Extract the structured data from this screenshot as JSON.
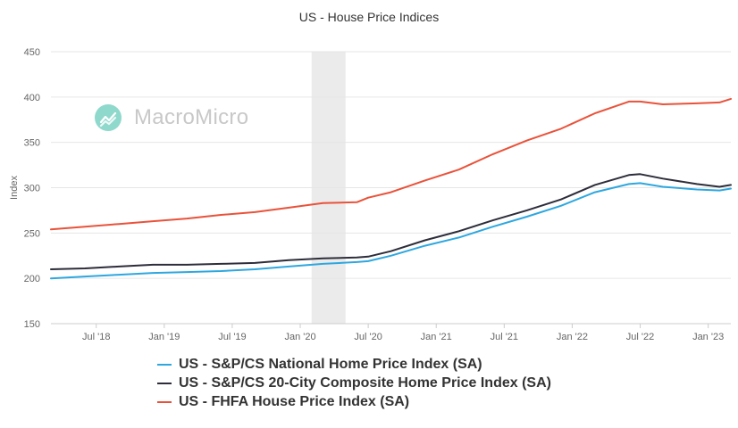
{
  "chart_data": {
    "type": "line",
    "title": "US - House Price Indices",
    "ylabel": "Index",
    "xlabel": "",
    "ylim": [
      150,
      450
    ],
    "yticks": [
      150,
      200,
      250,
      300,
      350,
      400,
      450
    ],
    "xlim": [
      "2018-03",
      "2023-03"
    ],
    "xticks": [
      {
        "label": "Jul '18",
        "date": "2018-07"
      },
      {
        "label": "Jan '19",
        "date": "2019-01"
      },
      {
        "label": "Jul '19",
        "date": "2019-07"
      },
      {
        "label": "Jan '20",
        "date": "2020-01"
      },
      {
        "label": "Jul '20",
        "date": "2020-07"
      },
      {
        "label": "Jan '21",
        "date": "2021-01"
      },
      {
        "label": "Jul '21",
        "date": "2021-07"
      },
      {
        "label": "Jan '22",
        "date": "2022-01"
      },
      {
        "label": "Jul '22",
        "date": "2022-07"
      },
      {
        "label": "Jan '23",
        "date": "2023-01"
      }
    ],
    "recession_band": {
      "start": "2020-02",
      "end": "2020-05",
      "color": "#ebebeb"
    },
    "grid": true,
    "legend_position": "bottom",
    "series": [
      {
        "name": "US - S&P/CS National Home Price Index (SA)",
        "color": "#2ea7df",
        "points": [
          [
            "2018-03",
            200
          ],
          [
            "2018-06",
            202
          ],
          [
            "2018-09",
            204
          ],
          [
            "2018-12",
            206
          ],
          [
            "2019-03",
            207
          ],
          [
            "2019-06",
            208
          ],
          [
            "2019-09",
            210
          ],
          [
            "2019-12",
            213
          ],
          [
            "2020-03",
            216
          ],
          [
            "2020-06",
            218
          ],
          [
            "2020-07",
            219
          ],
          [
            "2020-09",
            225
          ],
          [
            "2020-12",
            236
          ],
          [
            "2021-03",
            245
          ],
          [
            "2021-06",
            257
          ],
          [
            "2021-09",
            268
          ],
          [
            "2021-12",
            280
          ],
          [
            "2022-03",
            295
          ],
          [
            "2022-06",
            304
          ],
          [
            "2022-07",
            305
          ],
          [
            "2022-09",
            301
          ],
          [
            "2022-12",
            298
          ],
          [
            "2023-02",
            297
          ],
          [
            "2023-03",
            299
          ]
        ]
      },
      {
        "name": "US - S&P/CS 20-City Composite Home Price Index (SA)",
        "color": "#2d2d3b",
        "points": [
          [
            "2018-03",
            210
          ],
          [
            "2018-06",
            211
          ],
          [
            "2018-09",
            213
          ],
          [
            "2018-12",
            215
          ],
          [
            "2019-03",
            215
          ],
          [
            "2019-06",
            216
          ],
          [
            "2019-09",
            217
          ],
          [
            "2019-12",
            220
          ],
          [
            "2020-03",
            222
          ],
          [
            "2020-06",
            223
          ],
          [
            "2020-07",
            224
          ],
          [
            "2020-09",
            230
          ],
          [
            "2020-12",
            242
          ],
          [
            "2021-03",
            252
          ],
          [
            "2021-06",
            264
          ],
          [
            "2021-09",
            275
          ],
          [
            "2021-12",
            287
          ],
          [
            "2022-03",
            303
          ],
          [
            "2022-06",
            314
          ],
          [
            "2022-07",
            315
          ],
          [
            "2022-09",
            310
          ],
          [
            "2022-12",
            304
          ],
          [
            "2023-02",
            301
          ],
          [
            "2023-03",
            303
          ]
        ]
      },
      {
        "name": "US - FHFA House Price Index (SA)",
        "color": "#e9523a",
        "points": [
          [
            "2018-03",
            254
          ],
          [
            "2018-06",
            257
          ],
          [
            "2018-09",
            260
          ],
          [
            "2018-12",
            263
          ],
          [
            "2019-03",
            266
          ],
          [
            "2019-06",
            270
          ],
          [
            "2019-09",
            273
          ],
          [
            "2019-12",
            278
          ],
          [
            "2020-03",
            283
          ],
          [
            "2020-06",
            284
          ],
          [
            "2020-07",
            289
          ],
          [
            "2020-09",
            295
          ],
          [
            "2020-12",
            308
          ],
          [
            "2021-03",
            320
          ],
          [
            "2021-06",
            337
          ],
          [
            "2021-09",
            352
          ],
          [
            "2021-12",
            365
          ],
          [
            "2022-03",
            382
          ],
          [
            "2022-06",
            395
          ],
          [
            "2022-07",
            395
          ],
          [
            "2022-09",
            392
          ],
          [
            "2022-12",
            393
          ],
          [
            "2023-02",
            394
          ],
          [
            "2023-03",
            398
          ]
        ]
      }
    ]
  },
  "watermark": {
    "text": "MacroMicro",
    "icon": "trend-chart-icon",
    "icon_color": "#8fd8cc"
  },
  "colors": {
    "grid": "#e6e6e6",
    "axis_text": "#666666",
    "title": "#333333"
  }
}
